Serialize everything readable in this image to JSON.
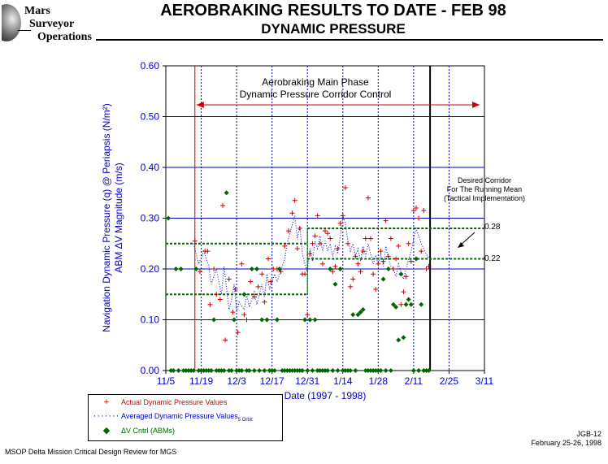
{
  "header": {
    "logo_lines": [
      "Mars",
      "Surveyor",
      "Operations"
    ],
    "title": "AEROBRAKING RESULTS TO DATE - FEB 98",
    "subtitle": "DYNAMIC PRESSURE"
  },
  "chart_data": {
    "type": "scatter",
    "xlabel": "Date (1997 - 1998)",
    "ylabel_line1": "Navigation Dynamic Pressure (q) @ Periapsis (N/m²)",
    "ylabel_line2": "ABM ΔV Magnitude (m/s)",
    "x_unit": "days since 1997-11-05",
    "x_ticks": [
      {
        "day": 0,
        "label": "11/5"
      },
      {
        "day": 14,
        "label": "11/19"
      },
      {
        "day": 28,
        "label": "12/3"
      },
      {
        "day": 42,
        "label": "12/17"
      },
      {
        "day": 56,
        "label": "12/31"
      },
      {
        "day": 70,
        "label": "1/14"
      },
      {
        "day": 84,
        "label": "1/28"
      },
      {
        "day": 98,
        "label": "2/11"
      },
      {
        "day": 112,
        "label": "2/25"
      },
      {
        "day": 126,
        "label": "3/11"
      }
    ],
    "y_ticks": [
      "0.00",
      "0.10",
      "0.20",
      "0.30",
      "0.40",
      "0.50",
      "0.60"
    ],
    "xlim": [
      0,
      126
    ],
    "ylim": [
      0,
      0.6
    ],
    "grid": true,
    "colors": {
      "grid": "#0000cc",
      "actual": "#cc0000",
      "average": "#0000cc",
      "abm": "#006600",
      "corridor": "#006600"
    },
    "annotations": {
      "phase_line1": "Aerobraking Main Phase",
      "phase_line2": "Dynamic Pressure Corridor Control",
      "corridor_line1": "Desired Corridor",
      "corridor_line2": "For The Running Mean",
      "corridor_line3": "(Tactical Implementation)",
      "upper_value_label": "0.28",
      "lower_value_label": "0.22"
    },
    "phase_start_day": 11.5,
    "current_day": 104.5,
    "corridor_segments": [
      {
        "start": 0,
        "end": 56,
        "low": 0.15,
        "high": 0.25
      },
      {
        "start": 56,
        "end": 126,
        "low": 0.22,
        "high": 0.28
      }
    ],
    "series": [
      {
        "name": "Actual Dynamic Pressure Values",
        "marker": "plus",
        "points": [
          [
            11.5,
            0.255
          ],
          [
            13.5,
            0.195
          ],
          [
            15.5,
            0.235
          ],
          [
            16.5,
            0.235
          ],
          [
            17.5,
            0.13
          ],
          [
            19,
            0.2
          ],
          [
            20,
            0.15
          ],
          [
            21.5,
            0.14
          ],
          [
            22.5,
            0.325
          ],
          [
            23.5,
            0.06
          ],
          [
            25,
            0.18
          ],
          [
            26.5,
            0.115
          ],
          [
            27.5,
            0.16
          ],
          [
            28.5,
            0.075
          ],
          [
            30,
            0.21
          ],
          [
            31,
            0.11
          ],
          [
            32,
            0.1
          ],
          [
            33.5,
            0.175
          ],
          [
            35,
            0.145
          ],
          [
            36.5,
            0.165
          ],
          [
            38,
            0.19
          ],
          [
            39,
            0.135
          ],
          [
            40.5,
            0.22
          ],
          [
            41.5,
            0.175
          ],
          [
            42.5,
            0.2
          ],
          [
            44,
            0.2
          ],
          [
            45.5,
            0.195
          ],
          [
            47,
            0.245
          ],
          [
            48.5,
            0.275
          ],
          [
            50,
            0.31
          ],
          [
            51,
            0.335
          ],
          [
            52,
            0.24
          ],
          [
            53,
            0.28
          ],
          [
            54,
            0.19
          ],
          [
            55,
            0.19
          ],
          [
            56,
            0.11
          ],
          [
            57,
            0.23
          ],
          [
            58,
            0.25
          ],
          [
            59,
            0.265
          ],
          [
            60,
            0.305
          ],
          [
            61,
            0.25
          ],
          [
            62,
            0.21
          ],
          [
            63,
            0.275
          ],
          [
            64,
            0.27
          ],
          [
            65,
            0.26
          ],
          [
            66,
            0.195
          ],
          [
            67,
            0.205
          ],
          [
            68,
            0.24
          ],
          [
            69,
            0.29
          ],
          [
            70,
            0.305
          ],
          [
            71,
            0.36
          ],
          [
            72,
            0.25
          ],
          [
            73,
            0.165
          ],
          [
            74,
            0.18
          ],
          [
            75,
            0.225
          ],
          [
            76,
            0.21
          ],
          [
            77,
            0.195
          ],
          [
            78,
            0.235
          ],
          [
            79,
            0.26
          ],
          [
            80,
            0.34
          ],
          [
            81,
            0.26
          ],
          [
            82,
            0.19
          ],
          [
            83,
            0.16
          ],
          [
            84,
            0.21
          ],
          [
            85,
            0.235
          ],
          [
            86,
            0.215
          ],
          [
            87,
            0.295
          ],
          [
            88,
            0.225
          ],
          [
            89,
            0.26
          ],
          [
            90,
            0.2
          ],
          [
            91,
            0.22
          ],
          [
            92,
            0.245
          ],
          [
            93,
            0.13
          ],
          [
            94,
            0.155
          ],
          [
            95,
            0.185
          ],
          [
            96,
            0.25
          ],
          [
            97,
            0.215
          ],
          [
            98,
            0.315
          ],
          [
            99,
            0.32
          ],
          [
            100,
            0.3
          ],
          [
            101,
            0.235
          ],
          [
            102,
            0.315
          ],
          [
            103,
            0.2
          ],
          [
            104,
            0.205
          ]
        ]
      },
      {
        "name": "Averaged Dynamic Pressure Values",
        "name_subscript": "5 Orbit",
        "marker": "dotted",
        "points": [
          [
            11,
            0.25
          ],
          [
            13,
            0.21
          ],
          [
            15,
            0.235
          ],
          [
            17,
            0.205
          ],
          [
            18,
            0.17
          ],
          [
            20,
            0.2
          ],
          [
            22,
            0.15
          ],
          [
            23,
            0.205
          ],
          [
            25,
            0.12
          ],
          [
            26,
            0.14
          ],
          [
            27,
            0.17
          ],
          [
            28,
            0.115
          ],
          [
            29,
            0.135
          ],
          [
            31,
            0.12
          ],
          [
            32,
            0.15
          ],
          [
            33,
            0.125
          ],
          [
            35,
            0.155
          ],
          [
            36,
            0.13
          ],
          [
            38,
            0.17
          ],
          [
            39,
            0.145
          ],
          [
            40,
            0.19
          ],
          [
            41,
            0.16
          ],
          [
            43,
            0.19
          ],
          [
            44,
            0.175
          ],
          [
            46,
            0.205
          ],
          [
            47,
            0.22
          ],
          [
            48,
            0.25
          ],
          [
            49,
            0.27
          ],
          [
            51,
            0.305
          ],
          [
            52,
            0.26
          ],
          [
            53,
            0.285
          ],
          [
            54,
            0.23
          ],
          [
            55,
            0.21
          ],
          [
            56,
            0.195
          ],
          [
            57,
            0.24
          ],
          [
            58,
            0.215
          ],
          [
            59,
            0.255
          ],
          [
            60,
            0.24
          ],
          [
            61,
            0.265
          ],
          [
            62,
            0.235
          ],
          [
            63,
            0.255
          ],
          [
            64,
            0.235
          ],
          [
            65,
            0.25
          ],
          [
            66,
            0.225
          ],
          [
            67,
            0.245
          ],
          [
            68,
            0.23
          ],
          [
            69,
            0.265
          ],
          [
            70,
            0.305
          ],
          [
            71,
            0.29
          ],
          [
            72,
            0.255
          ],
          [
            73,
            0.235
          ],
          [
            74,
            0.25
          ],
          [
            75,
            0.225
          ],
          [
            76,
            0.24
          ],
          [
            77,
            0.215
          ],
          [
            78,
            0.245
          ],
          [
            79,
            0.225
          ],
          [
            80,
            0.25
          ],
          [
            81,
            0.23
          ],
          [
            82,
            0.21
          ],
          [
            83,
            0.225
          ],
          [
            84,
            0.21
          ],
          [
            85,
            0.23
          ],
          [
            86,
            0.205
          ],
          [
            87,
            0.245
          ],
          [
            88,
            0.22
          ],
          [
            89,
            0.205
          ],
          [
            90,
            0.2
          ],
          [
            91,
            0.185
          ],
          [
            92,
            0.21
          ],
          [
            93,
            0.195
          ],
          [
            94,
            0.18
          ],
          [
            95,
            0.2
          ],
          [
            96,
            0.22
          ],
          [
            97,
            0.235
          ],
          [
            98,
            0.26
          ],
          [
            99,
            0.28
          ],
          [
            100,
            0.265
          ],
          [
            101,
            0.25
          ],
          [
            102,
            0.24
          ],
          [
            103,
            0.23
          ],
          [
            104,
            0.22
          ]
        ]
      },
      {
        "name": "ΔV Cntrl (ABMs)",
        "marker": "diamond",
        "points": [
          [
            1,
            0.3
          ],
          [
            4,
            0.2
          ],
          [
            6,
            0.2
          ],
          [
            12,
            0.2
          ],
          [
            19,
            0.1
          ],
          [
            24,
            0.35
          ],
          [
            25,
            0.0
          ],
          [
            27,
            0.1
          ],
          [
            28,
            0.0
          ],
          [
            31,
            0.15
          ],
          [
            34,
            0.2
          ],
          [
            36,
            0.2
          ],
          [
            38,
            0.1
          ],
          [
            40,
            0.1
          ],
          [
            41,
            0.0
          ],
          [
            43,
            0.0
          ],
          [
            44,
            0.1
          ],
          [
            45,
            0.2
          ],
          [
            47,
            0.0
          ],
          [
            55,
            0.1
          ],
          [
            57,
            0.1
          ],
          [
            59,
            0.1
          ],
          [
            63,
            0.0
          ],
          [
            65,
            0.2
          ],
          [
            67,
            0.17
          ],
          [
            69,
            0.2
          ],
          [
            71,
            0.0
          ],
          [
            74,
            0.11
          ],
          [
            76,
            0.11
          ],
          [
            77,
            0.115
          ],
          [
            78,
            0.12
          ],
          [
            81,
            0.0
          ],
          [
            83,
            0.0
          ],
          [
            86,
            0.18
          ],
          [
            88,
            0.2
          ],
          [
            90,
            0.13
          ],
          [
            91,
            0.125
          ],
          [
            92,
            0.06
          ],
          [
            93,
            0.19
          ],
          [
            94,
            0.065
          ],
          [
            95,
            0.13
          ],
          [
            96,
            0.14
          ],
          [
            97,
            0.13
          ],
          [
            99,
            0.22
          ],
          [
            101,
            0.13
          ],
          [
            103,
            0.0
          ]
        ]
      }
    ],
    "axis_zero_abm_days": [
      2,
      3,
      5,
      7,
      8,
      9,
      10,
      11,
      13,
      14,
      15,
      16,
      17,
      18,
      20,
      21,
      22,
      23,
      26,
      29,
      30,
      32,
      33,
      35,
      37,
      39,
      42,
      46,
      48,
      49,
      50,
      51,
      52,
      53,
      54,
      56,
      58,
      60,
      61,
      62,
      64,
      66,
      68,
      70,
      72,
      73,
      75,
      79,
      80,
      82,
      84,
      85,
      87,
      89,
      98,
      100,
      102,
      104
    ]
  },
  "legend": {
    "actual_label": "Actual Dynamic Pressure Values",
    "average_label": "Averaged Dynamic Pressure Values",
    "average_subscript": "5 Orbit",
    "abm_label": "ΔV Cntrl (ABMs)"
  },
  "footer": {
    "left": "MSOP Delta Mission Critical Design Review for MGS",
    "right_line1": "JGB-12",
    "right_line2": "February 25-26, 1998"
  }
}
